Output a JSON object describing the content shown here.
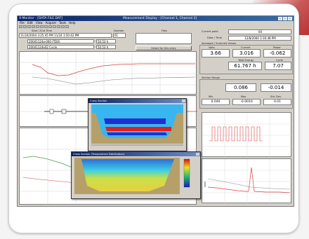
{
  "window": {
    "title": "X-Monitor - [DATA FILE.DAT]",
    "center_title": "Measurement Display - [Channel 1, Channel 2]"
  },
  "menu": [
    "File",
    "Edit",
    "View",
    "Acquire",
    "Tools",
    "Help"
  ],
  "left_panel": {
    "header_time_label": "Start / End Time",
    "header_number_label": "Number",
    "header_other_label": "Files",
    "time_range": "11/24/2004 3:25:45 PM 11/24 3:50:42 PM",
    "time_index": "61",
    "row1_name": "20041124a-000 (TDX)",
    "row1_value": "50.53 h",
    "row2_name": "20041124e02 Cycle",
    "row2_value": "50.53 h",
    "select_button": "Select for this entry"
  },
  "right_panel": {
    "current_point_label": "Current point",
    "current_point": "60",
    "date_time_label": "Date / Time",
    "date_time": "12/8/2004 3:16:48 PM",
    "avg_section_label": "Averages / Summed Values",
    "v1_label": "Volts",
    "v1": "3.66",
    "v2_label": "Current",
    "v2": "3.016",
    "v3_label": "Power",
    "v3": "-0.062",
    "energy_label": "Total Energy",
    "energy": "61.767 h",
    "cycle_label": "Cycle",
    "cycle": "7.07",
    "section2_label": "Section Range",
    "s1": "0.086",
    "s2": "-0.014",
    "bl1_label": "Min",
    "bl1": "0.040",
    "bl2_label": "Max",
    "bl2": "-0.0010",
    "bl3_label": "Std. Dev",
    "bl3": "0.01",
    "plot_label": "mAh"
  },
  "popup_top": {
    "title": "Cross Section"
  },
  "popup_bottom": {
    "title": "Cross Section (Temperature Distribution)"
  },
  "colors": {
    "deep_blue": "#1e2fd1",
    "light_blue": "#38b6ef",
    "soil": "#b5a06a",
    "red_band": "#e02020",
    "plot_red": "#d94040"
  }
}
